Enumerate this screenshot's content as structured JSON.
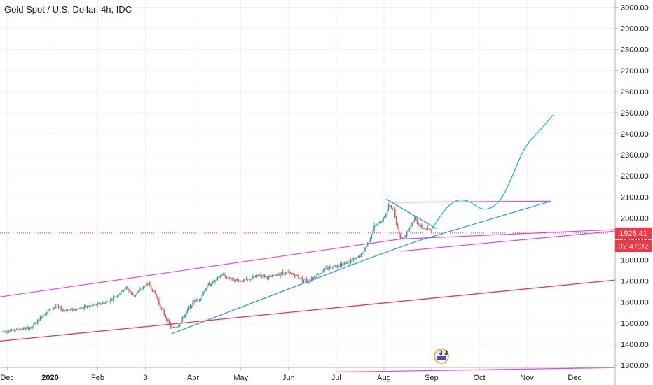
{
  "header": {
    "title": "Gold Spot / U.S. Dollar, 4h, IDC"
  },
  "colors": {
    "up": "#26a69a",
    "down": "#ef5350",
    "channel": "#e040fb",
    "trend": "#2196f3",
    "support": "#f23645",
    "projection": "#00bcd4",
    "price_badge": "#f23645",
    "timer_badge": "#f23645"
  },
  "price_badge": {
    "price": "1928.41",
    "countdown": "02:47:32"
  },
  "chart_data": {
    "type": "candlestick",
    "title": "Gold Spot / U.S. Dollar, 4h, IDC",
    "y_ticks": [
      "1300.00",
      "1400.00",
      "1500.00",
      "1600.00",
      "1700.00",
      "1800.00",
      "1900.00",
      "2000.00",
      "2100.00",
      "2200.00",
      "2300.00",
      "2400.00",
      "2500.00",
      "2600.00",
      "2700.00",
      "2800.00",
      "2900.00",
      "3000.00"
    ],
    "ylim": [
      1290,
      3035
    ],
    "x_ticks": [
      {
        "label": "Dec",
        "t": 0.1
      },
      {
        "label": "2020",
        "t": 1.0,
        "bold": true
      },
      {
        "label": "Feb",
        "t": 2.0
      },
      {
        "label": "3",
        "t": 3.0
      },
      {
        "label": "Apr",
        "t": 4.0
      },
      {
        "label": "May",
        "t": 5.0
      },
      {
        "label": "Jun",
        "t": 6.0
      },
      {
        "label": "Jul",
        "t": 7.0
      },
      {
        "label": "Aug",
        "t": 8.0
      },
      {
        "label": "Sep",
        "t": 9.0
      },
      {
        "label": "Oct",
        "t": 10.0
      },
      {
        "label": "Nov",
        "t": 11.0
      },
      {
        "label": "Dec",
        "t": 12.0
      }
    ],
    "xlim": [
      -0.05,
      12.85
    ],
    "last_price": 1928.41,
    "price_path": [
      [
        0.0,
        1460
      ],
      [
        0.3,
        1470
      ],
      [
        0.6,
        1478
      ],
      [
        0.9,
        1550
      ],
      [
        1.1,
        1580
      ],
      [
        1.3,
        1560
      ],
      [
        1.6,
        1570
      ],
      [
        1.9,
        1585
      ],
      [
        2.2,
        1600
      ],
      [
        2.45,
        1640
      ],
      [
        2.6,
        1670
      ],
      [
        2.75,
        1630
      ],
      [
        2.9,
        1660
      ],
      [
        3.05,
        1690
      ],
      [
        3.2,
        1640
      ],
      [
        3.35,
        1560
      ],
      [
        3.55,
        1475
      ],
      [
        3.7,
        1490
      ],
      [
        3.85,
        1550
      ],
      [
        4.0,
        1600
      ],
      [
        4.15,
        1620
      ],
      [
        4.3,
        1680
      ],
      [
        4.45,
        1700
      ],
      [
        4.6,
        1730
      ],
      [
        4.8,
        1710
      ],
      [
        5.0,
        1700
      ],
      [
        5.2,
        1710
      ],
      [
        5.4,
        1730
      ],
      [
        5.6,
        1715
      ],
      [
        5.8,
        1735
      ],
      [
        6.0,
        1740
      ],
      [
        6.2,
        1720
      ],
      [
        6.4,
        1700
      ],
      [
        6.6,
        1730
      ],
      [
        6.8,
        1760
      ],
      [
        7.0,
        1775
      ],
      [
        7.2,
        1785
      ],
      [
        7.4,
        1805
      ],
      [
        7.55,
        1830
      ],
      [
        7.7,
        1900
      ],
      [
        7.8,
        1960
      ],
      [
        7.9,
        1975
      ],
      [
        8.0,
        2000
      ],
      [
        8.1,
        2060
      ],
      [
        8.2,
        2040
      ],
      [
        8.28,
        1960
      ],
      [
        8.35,
        1900
      ],
      [
        8.45,
        1920
      ],
      [
        8.55,
        1960
      ],
      [
        8.65,
        2000
      ],
      [
        8.75,
        1960
      ],
      [
        8.9,
        1945
      ],
      [
        9.0,
        1940
      ]
    ],
    "series": [
      {
        "name": "channel-upper",
        "type": "line",
        "points": [
          [
            -0.05,
            1625
          ],
          [
            8.35,
            1900
          ],
          [
            12.85,
            1945
          ]
        ]
      },
      {
        "name": "channel-lower",
        "type": "line",
        "points": [
          [
            8.35,
            1842
          ],
          [
            12.85,
            1938
          ]
        ]
      },
      {
        "name": "resistance",
        "type": "line",
        "points": [
          [
            8.1,
            2075
          ],
          [
            11.5,
            2080
          ]
        ]
      },
      {
        "name": "triangle-top",
        "type": "line",
        "points": [
          [
            8.05,
            2090
          ],
          [
            9.1,
            1950
          ]
        ]
      },
      {
        "name": "trendline",
        "type": "line",
        "points": [
          [
            3.55,
            1450
          ],
          [
            7.65,
            1805
          ],
          [
            8.7,
            1890
          ],
          [
            11.5,
            2080
          ]
        ]
      },
      {
        "name": "support",
        "type": "line",
        "points": [
          [
            -0.05,
            1415
          ],
          [
            12.85,
            1705
          ]
        ]
      },
      {
        "name": "bottom-line",
        "type": "line",
        "points": [
          [
            7.0,
            1268
          ],
          [
            12.85,
            1289
          ]
        ]
      },
      {
        "name": "projection",
        "type": "line",
        "points": [
          [
            9.0,
            1945
          ],
          [
            9.3,
            2050
          ],
          [
            9.55,
            2090
          ],
          [
            9.8,
            2080
          ],
          [
            10.0,
            2045
          ],
          [
            10.2,
            2040
          ],
          [
            10.45,
            2080
          ],
          [
            10.7,
            2200
          ],
          [
            10.95,
            2340
          ],
          [
            11.25,
            2410
          ],
          [
            11.55,
            2490
          ]
        ]
      }
    ]
  }
}
